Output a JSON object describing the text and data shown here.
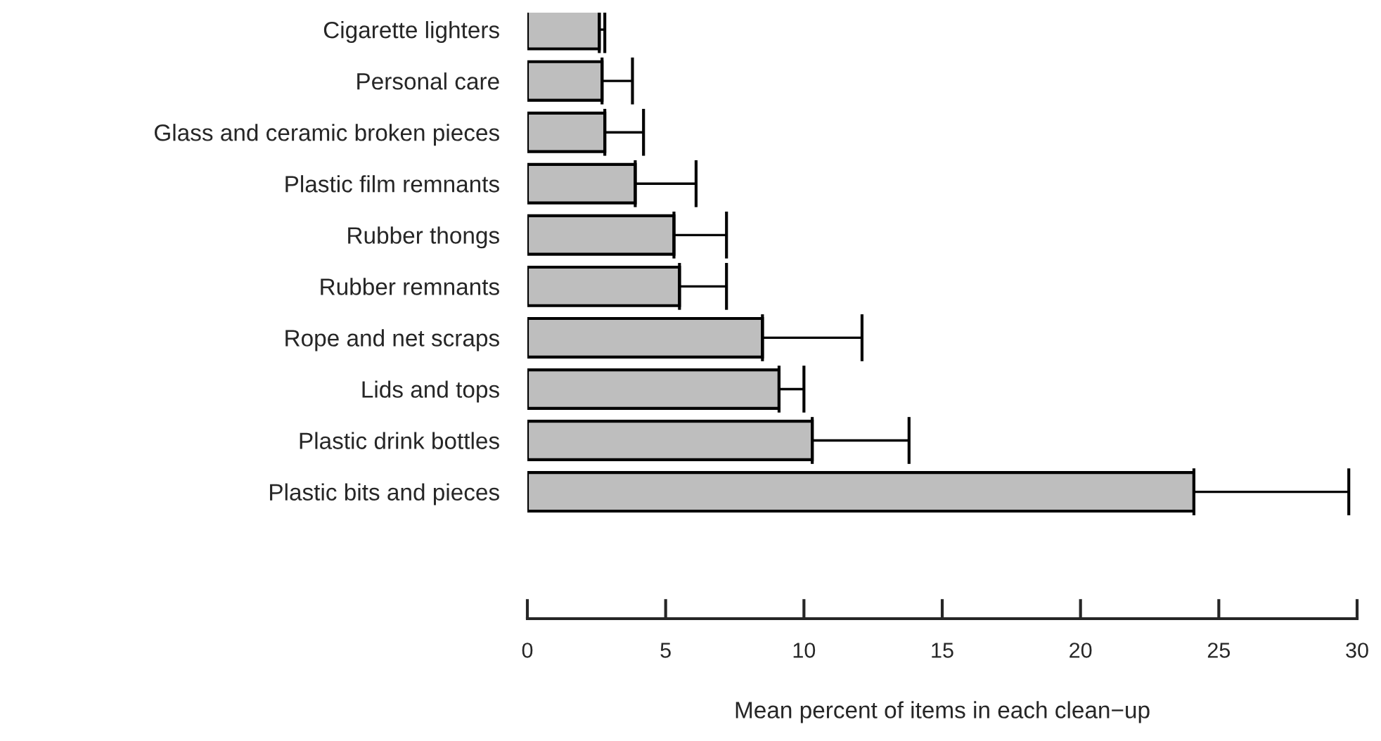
{
  "chart_data": {
    "type": "bar",
    "orientation": "horizontal",
    "xlabel": "Mean percent of items in each clean−up",
    "categories": [
      "Cigarette lighters",
      "Personal care",
      "Glass and ceramic broken pieces",
      "Plastic film remnants",
      "Rubber thongs",
      "Rubber remnants",
      "Rope and net scraps",
      "Lids and tops",
      "Plastic drink bottles",
      "Plastic bits and pieces"
    ],
    "values": [
      2.6,
      2.7,
      2.8,
      3.9,
      5.3,
      5.5,
      8.5,
      9.1,
      10.3,
      24.1
    ],
    "errors": [
      [
        2.6,
        2.8
      ],
      [
        2.7,
        3.8
      ],
      [
        2.8,
        4.2
      ],
      [
        3.9,
        6.1
      ],
      [
        5.3,
        7.2
      ],
      [
        5.5,
        7.2
      ],
      [
        8.5,
        12.1
      ],
      [
        9.1,
        10.0
      ],
      [
        10.3,
        13.8
      ],
      [
        24.1,
        29.7
      ]
    ],
    "color": "#bebebe",
    "xlim": [
      0,
      30
    ],
    "xticks": [
      0,
      5,
      10,
      15,
      20,
      25,
      30
    ],
    "grid": false,
    "legend": false
  }
}
